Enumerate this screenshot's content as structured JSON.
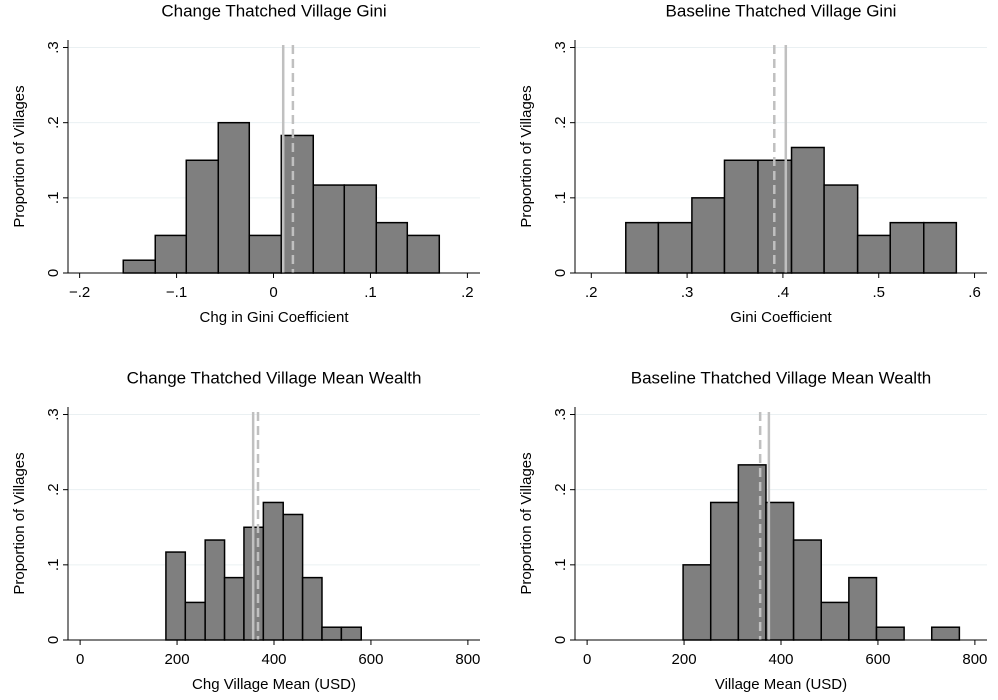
{
  "chart_data": [
    {
      "type": "histogram",
      "title": "Change Thatched Village Gini",
      "xlabel": "Chg in Gini Coefficient",
      "ylabel": "Proportion of Villages",
      "bins": [
        -0.155,
        -0.122,
        -0.09,
        -0.057,
        -0.025,
        0.008,
        0.041,
        0.073,
        0.106,
        0.138,
        0.171
      ],
      "values": [
        0.017,
        0.05,
        0.15,
        0.2,
        0.05,
        0.183,
        0.117,
        0.117,
        0.067,
        0.05
      ],
      "color": "#7f7f7f",
      "edgecolor": "#000000",
      "grid": true,
      "xlim": [
        -0.212,
        0.213
      ],
      "xticks": [
        {
          "value": -0.2,
          "label": "−.2"
        },
        {
          "value": -0.1,
          "label": "−.1"
        },
        0,
        {
          "value": 0.1,
          "label": ".1"
        },
        {
          "value": 0.2,
          "label": ".2"
        }
      ],
      "ylim": [
        0,
        0.31
      ],
      "yticks": [
        0,
        {
          "value": 0.1,
          "label": ".1"
        },
        {
          "value": 0.2,
          "label": ".2"
        },
        {
          "value": 0.3,
          "label": ".3"
        }
      ],
      "ref_lines": [
        {
          "value": 0.01,
          "dashed": false,
          "color": "#c0c0c0"
        },
        {
          "value": 0.02,
          "dashed": true,
          "color": "#c0c0c0"
        }
      ]
    },
    {
      "type": "histogram",
      "title": "Baseline Thatched Village Gini",
      "xlabel": "Gini Coefficient",
      "ylabel": "Proportion of Villages",
      "bins": [
        0.236,
        0.27,
        0.305,
        0.339,
        0.374,
        0.409,
        0.443,
        0.478,
        0.512,
        0.547,
        0.581
      ],
      "values": [
        0.067,
        0.067,
        0.1,
        0.15,
        0.15,
        0.167,
        0.117,
        0.05,
        0.067,
        0.067
      ],
      "color": "#7f7f7f",
      "edgecolor": "#000000",
      "grid": true,
      "xlim": [
        0.183,
        0.613
      ],
      "xticks": [
        {
          "value": 0.2,
          "label": ".2"
        },
        {
          "value": 0.3,
          "label": ".3"
        },
        {
          "value": 0.4,
          "label": ".4"
        },
        {
          "value": 0.5,
          "label": ".5"
        },
        {
          "value": 0.6,
          "label": ".6"
        }
      ],
      "ylim": [
        0,
        0.31
      ],
      "yticks": [
        0,
        {
          "value": 0.1,
          "label": ".1"
        },
        {
          "value": 0.2,
          "label": ".2"
        },
        {
          "value": 0.3,
          "label": ".3"
        }
      ],
      "ref_lines": [
        {
          "value": 0.391,
          "dashed": true,
          "color": "#c0c0c0"
        },
        {
          "value": 0.403,
          "dashed": false,
          "color": "#c0c0c0"
        }
      ]
    },
    {
      "type": "histogram",
      "title": "Change Thatched Village Mean Wealth",
      "xlabel": "Chg Village Mean (USD)",
      "ylabel": "Proportion of Villages",
      "bins": [
        177,
        217,
        258,
        298,
        338,
        378,
        419,
        459,
        499,
        539,
        580
      ],
      "values": [
        0.117,
        0.05,
        0.133,
        0.083,
        0.15,
        0.183,
        0.167,
        0.083,
        0.017,
        0.017
      ],
      "color": "#7f7f7f",
      "edgecolor": "#000000",
      "grid": true,
      "xlim": [
        -25,
        825
      ],
      "xticks": [
        0,
        200,
        400,
        600,
        800
      ],
      "ylim": [
        0,
        0.31
      ],
      "yticks": [
        0,
        {
          "value": 0.1,
          "label": ".1"
        },
        {
          "value": 0.2,
          "label": ".2"
        },
        {
          "value": 0.3,
          "label": ".3"
        }
      ],
      "ref_lines": [
        {
          "value": 357,
          "dashed": false,
          "color": "#c0c0c0"
        },
        {
          "value": 367,
          "dashed": true,
          "color": "#c0c0c0"
        }
      ]
    },
    {
      "type": "histogram",
      "title": "Baseline Thatched Village Mean Wealth",
      "xlabel": "Village Mean (USD)",
      "ylabel": "Proportion of Villages",
      "bins": [
        198,
        255,
        312,
        369,
        426,
        483,
        540,
        597,
        654,
        711,
        768
      ],
      "values": [
        0.1,
        0.183,
        0.233,
        0.183,
        0.133,
        0.05,
        0.083,
        0.017,
        0,
        0.017
      ],
      "color": "#7f7f7f",
      "edgecolor": "#000000",
      "grid": true,
      "xlim": [
        -25,
        825
      ],
      "xticks": [
        0,
        200,
        400,
        600,
        800
      ],
      "ylim": [
        0,
        0.31
      ],
      "yticks": [
        0,
        {
          "value": 0.1,
          "label": ".1"
        },
        {
          "value": 0.2,
          "label": ".2"
        },
        {
          "value": 0.3,
          "label": ".3"
        }
      ],
      "ref_lines": [
        {
          "value": 357,
          "dashed": true,
          "color": "#c0c0c0"
        },
        {
          "value": 375,
          "dashed": false,
          "color": "#c0c0c0"
        }
      ]
    }
  ]
}
